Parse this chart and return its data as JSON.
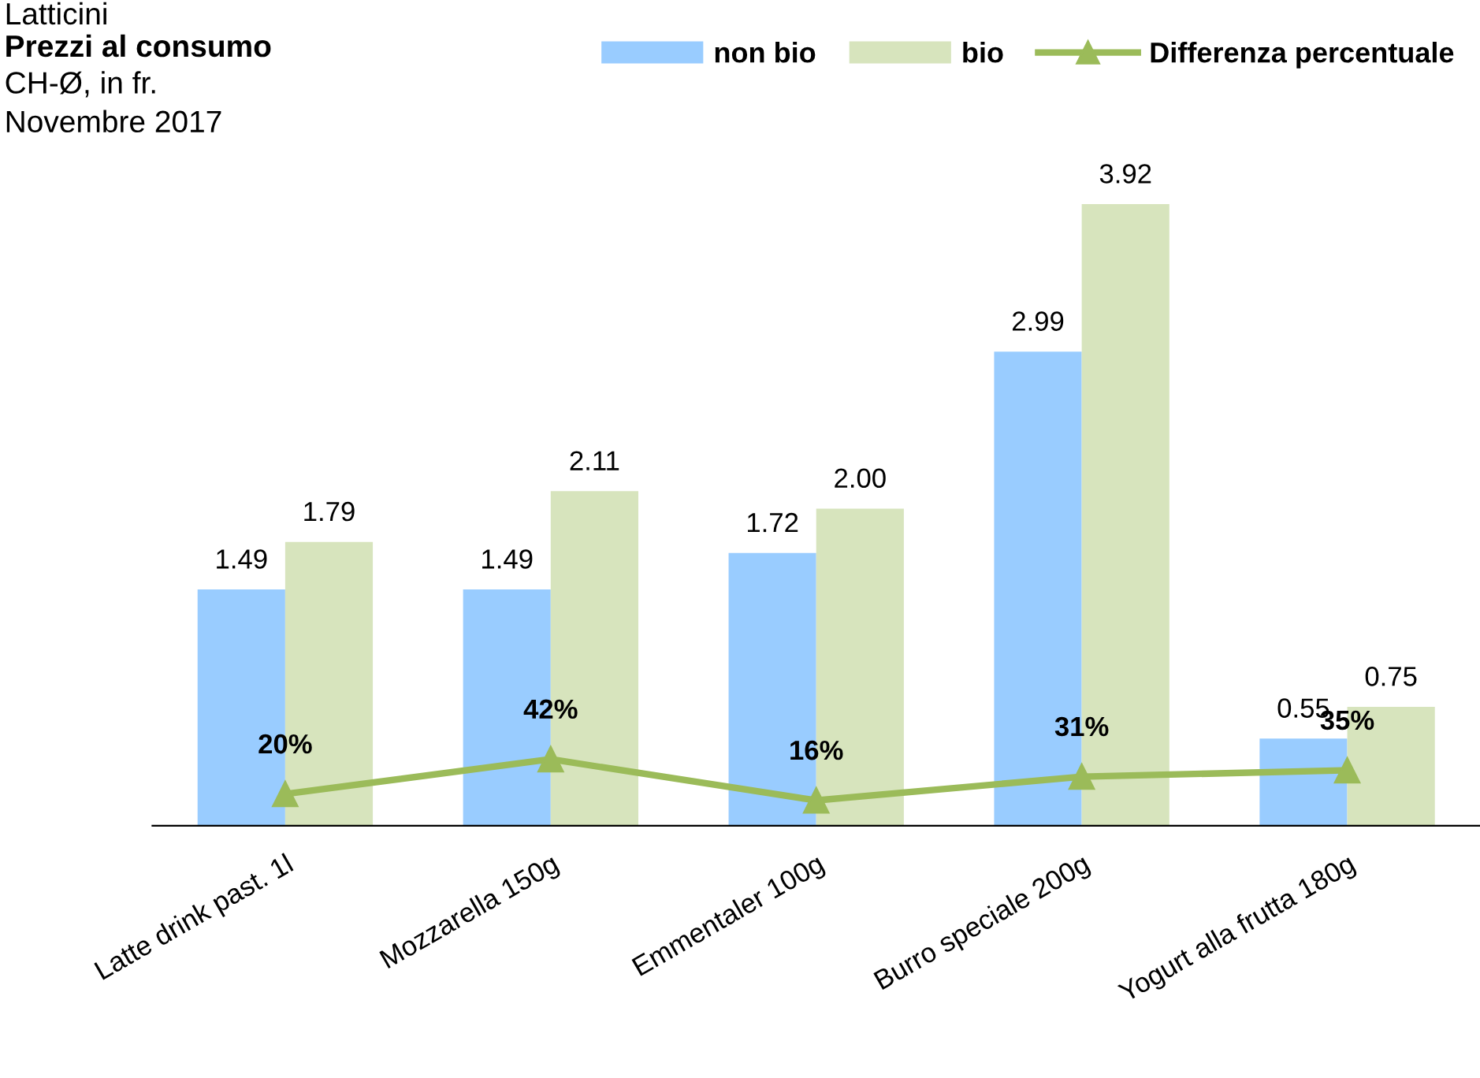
{
  "chart_data": {
    "type": "bar",
    "title": "Latticini",
    "subtitle": "Prezzi al consumo",
    "annotations": [
      "CH-Ø, in fr.",
      "Novembre 2017"
    ],
    "categories": [
      "Latte drink past. 1l",
      "Mozzarella 150g",
      "Emmentaler 100g",
      "Burro speciale 200g",
      "Yogurt alla frutta 180g"
    ],
    "series": [
      {
        "name": "non bio",
        "color": "#99ccff",
        "values": [
          1.49,
          1.49,
          1.72,
          2.99,
          0.55
        ],
        "value_labels": [
          "1.49",
          "1.49",
          "1.72",
          "2.99",
          "0.55"
        ]
      },
      {
        "name": "bio",
        "color": "#d7e4bd",
        "values": [
          1.79,
          2.11,
          2.0,
          3.92,
          0.75
        ],
        "value_labels": [
          "1.79",
          "2.11",
          "2.00",
          "3.92",
          "0.75"
        ]
      },
      {
        "name": "Differenza percentuale",
        "type": "line",
        "axis": "y2",
        "color": "#9bbb59",
        "marker": "triangle",
        "values": [
          20,
          42,
          16,
          31,
          35
        ],
        "value_labels": [
          "20%",
          "42%",
          "16%",
          "31%",
          "35%"
        ]
      }
    ],
    "tick_labels": "x",
    "legend": "top right"
  }
}
